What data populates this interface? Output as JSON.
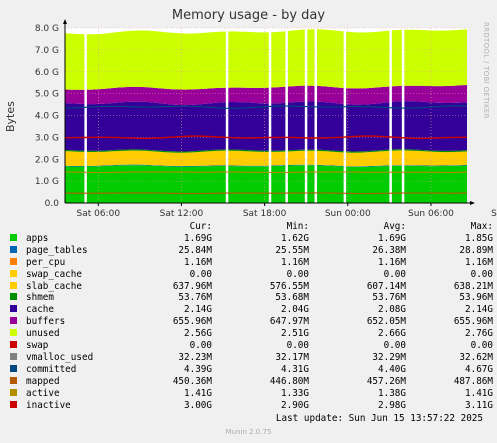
{
  "chart_data": {
    "type": "area",
    "stacked": true,
    "title": "Memory usage - by day",
    "ylabel": "Bytes",
    "y_unit": "G",
    "ylim": [
      0,
      8.0
    ],
    "yticks": [
      "0.0",
      "1.0 G",
      "2.0 G",
      "3.0 G",
      "4.0 G",
      "5.0 G",
      "6.0 G",
      "7.0 G",
      "8.0 G"
    ],
    "xticks": [
      "Sat 06:00",
      "Sat 12:00",
      "Sat 18:00",
      "Sun 00:00",
      "Sun 06:00",
      "Sun 12:00"
    ],
    "grid": true,
    "watermark": "RRDTOOL / TOBI OETIKER",
    "stacked_series_G": [
      {
        "name": "apps",
        "value": 1.69,
        "color": "#00cc00"
      },
      {
        "name": "page_tables",
        "value": 0.0258,
        "color": "#0066b3"
      },
      {
        "name": "per_cpu",
        "value": 0.0012,
        "color": "#ff8000"
      },
      {
        "name": "swap_cache",
        "value": 0.0,
        "color": "#ffcc00"
      },
      {
        "name": "slab_cache",
        "value": 0.638,
        "color": "#ffcc00"
      },
      {
        "name": "shmem",
        "value": 0.0538,
        "color": "#008f00"
      },
      {
        "name": "cache",
        "value": 2.14,
        "color": "#330099"
      },
      {
        "name": "buffers",
        "value": 0.656,
        "color": "#990099"
      },
      {
        "name": "unused",
        "value": 2.56,
        "color": "#ccff00"
      }
    ],
    "line_series_G": [
      {
        "name": "mapped",
        "value": 0.45,
        "color": "#b35a00"
      },
      {
        "name": "committed",
        "value": 4.39,
        "color": "#00487d"
      },
      {
        "name": "active",
        "value": 1.41,
        "color": "#b38f00"
      },
      {
        "name": "inactive",
        "value": 3.0,
        "color": "#cc0000"
      }
    ],
    "gaps_hours_after_start": [
      1.4,
      11.6,
      14.7,
      15.9,
      17.3,
      18.0,
      20.1,
      23.4,
      24.3
    ]
  },
  "legend": {
    "headers": [
      "Cur:",
      "Min:",
      "Avg:",
      "Max:"
    ],
    "rows": [
      {
        "name": "apps",
        "color": "#00cc00",
        "cur": "1.69G",
        "min": "1.62G",
        "avg": "1.69G",
        "max": "1.85G"
      },
      {
        "name": "page_tables",
        "color": "#0066b3",
        "cur": "25.84M",
        "min": "25.55M",
        "avg": "26.38M",
        "max": "28.89M"
      },
      {
        "name": "per_cpu",
        "color": "#ff8000",
        "cur": "1.16M",
        "min": "1.16M",
        "avg": "1.16M",
        "max": "1.16M"
      },
      {
        "name": "swap_cache",
        "color": "#ffcc00",
        "cur": "0.00",
        "min": "0.00",
        "avg": "0.00",
        "max": "0.00"
      },
      {
        "name": "slab_cache",
        "color": "#ffcc00",
        "cur": "637.96M",
        "min": "576.55M",
        "avg": "607.14M",
        "max": "638.21M"
      },
      {
        "name": "shmem",
        "color": "#008f00",
        "cur": "53.76M",
        "min": "53.68M",
        "avg": "53.76M",
        "max": "53.96M"
      },
      {
        "name": "cache",
        "color": "#330099",
        "cur": "2.14G",
        "min": "2.04G",
        "avg": "2.08G",
        "max": "2.14G"
      },
      {
        "name": "buffers",
        "color": "#990099",
        "cur": "655.96M",
        "min": "647.97M",
        "avg": "652.05M",
        "max": "655.96M"
      },
      {
        "name": "unused",
        "color": "#ccff00",
        "cur": "2.56G",
        "min": "2.51G",
        "avg": "2.66G",
        "max": "2.76G"
      },
      {
        "name": "swap",
        "color": "#cc0000",
        "cur": "0.00",
        "min": "0.00",
        "avg": "0.00",
        "max": "0.00"
      },
      {
        "name": "vmalloc_used",
        "color": "#808080",
        "cur": "32.23M",
        "min": "32.17M",
        "avg": "32.29M",
        "max": "32.62M"
      },
      {
        "name": "committed",
        "color": "#00487d",
        "cur": "4.39G",
        "min": "4.31G",
        "avg": "4.40G",
        "max": "4.67G"
      },
      {
        "name": "mapped",
        "color": "#b35a00",
        "cur": "450.36M",
        "min": "446.80M",
        "avg": "457.26M",
        "max": "487.86M"
      },
      {
        "name": "active",
        "color": "#b38f00",
        "cur": "1.41G",
        "min": "1.33G",
        "avg": "1.38G",
        "max": "1.41G"
      },
      {
        "name": "inactive",
        "color": "#cc0000",
        "cur": "3.00G",
        "min": "2.90G",
        "avg": "2.98G",
        "max": "3.11G"
      }
    ]
  },
  "last_update": "Last update: Sun Jun 15 13:57:22 2025",
  "footer": "Munin 2.0.75"
}
